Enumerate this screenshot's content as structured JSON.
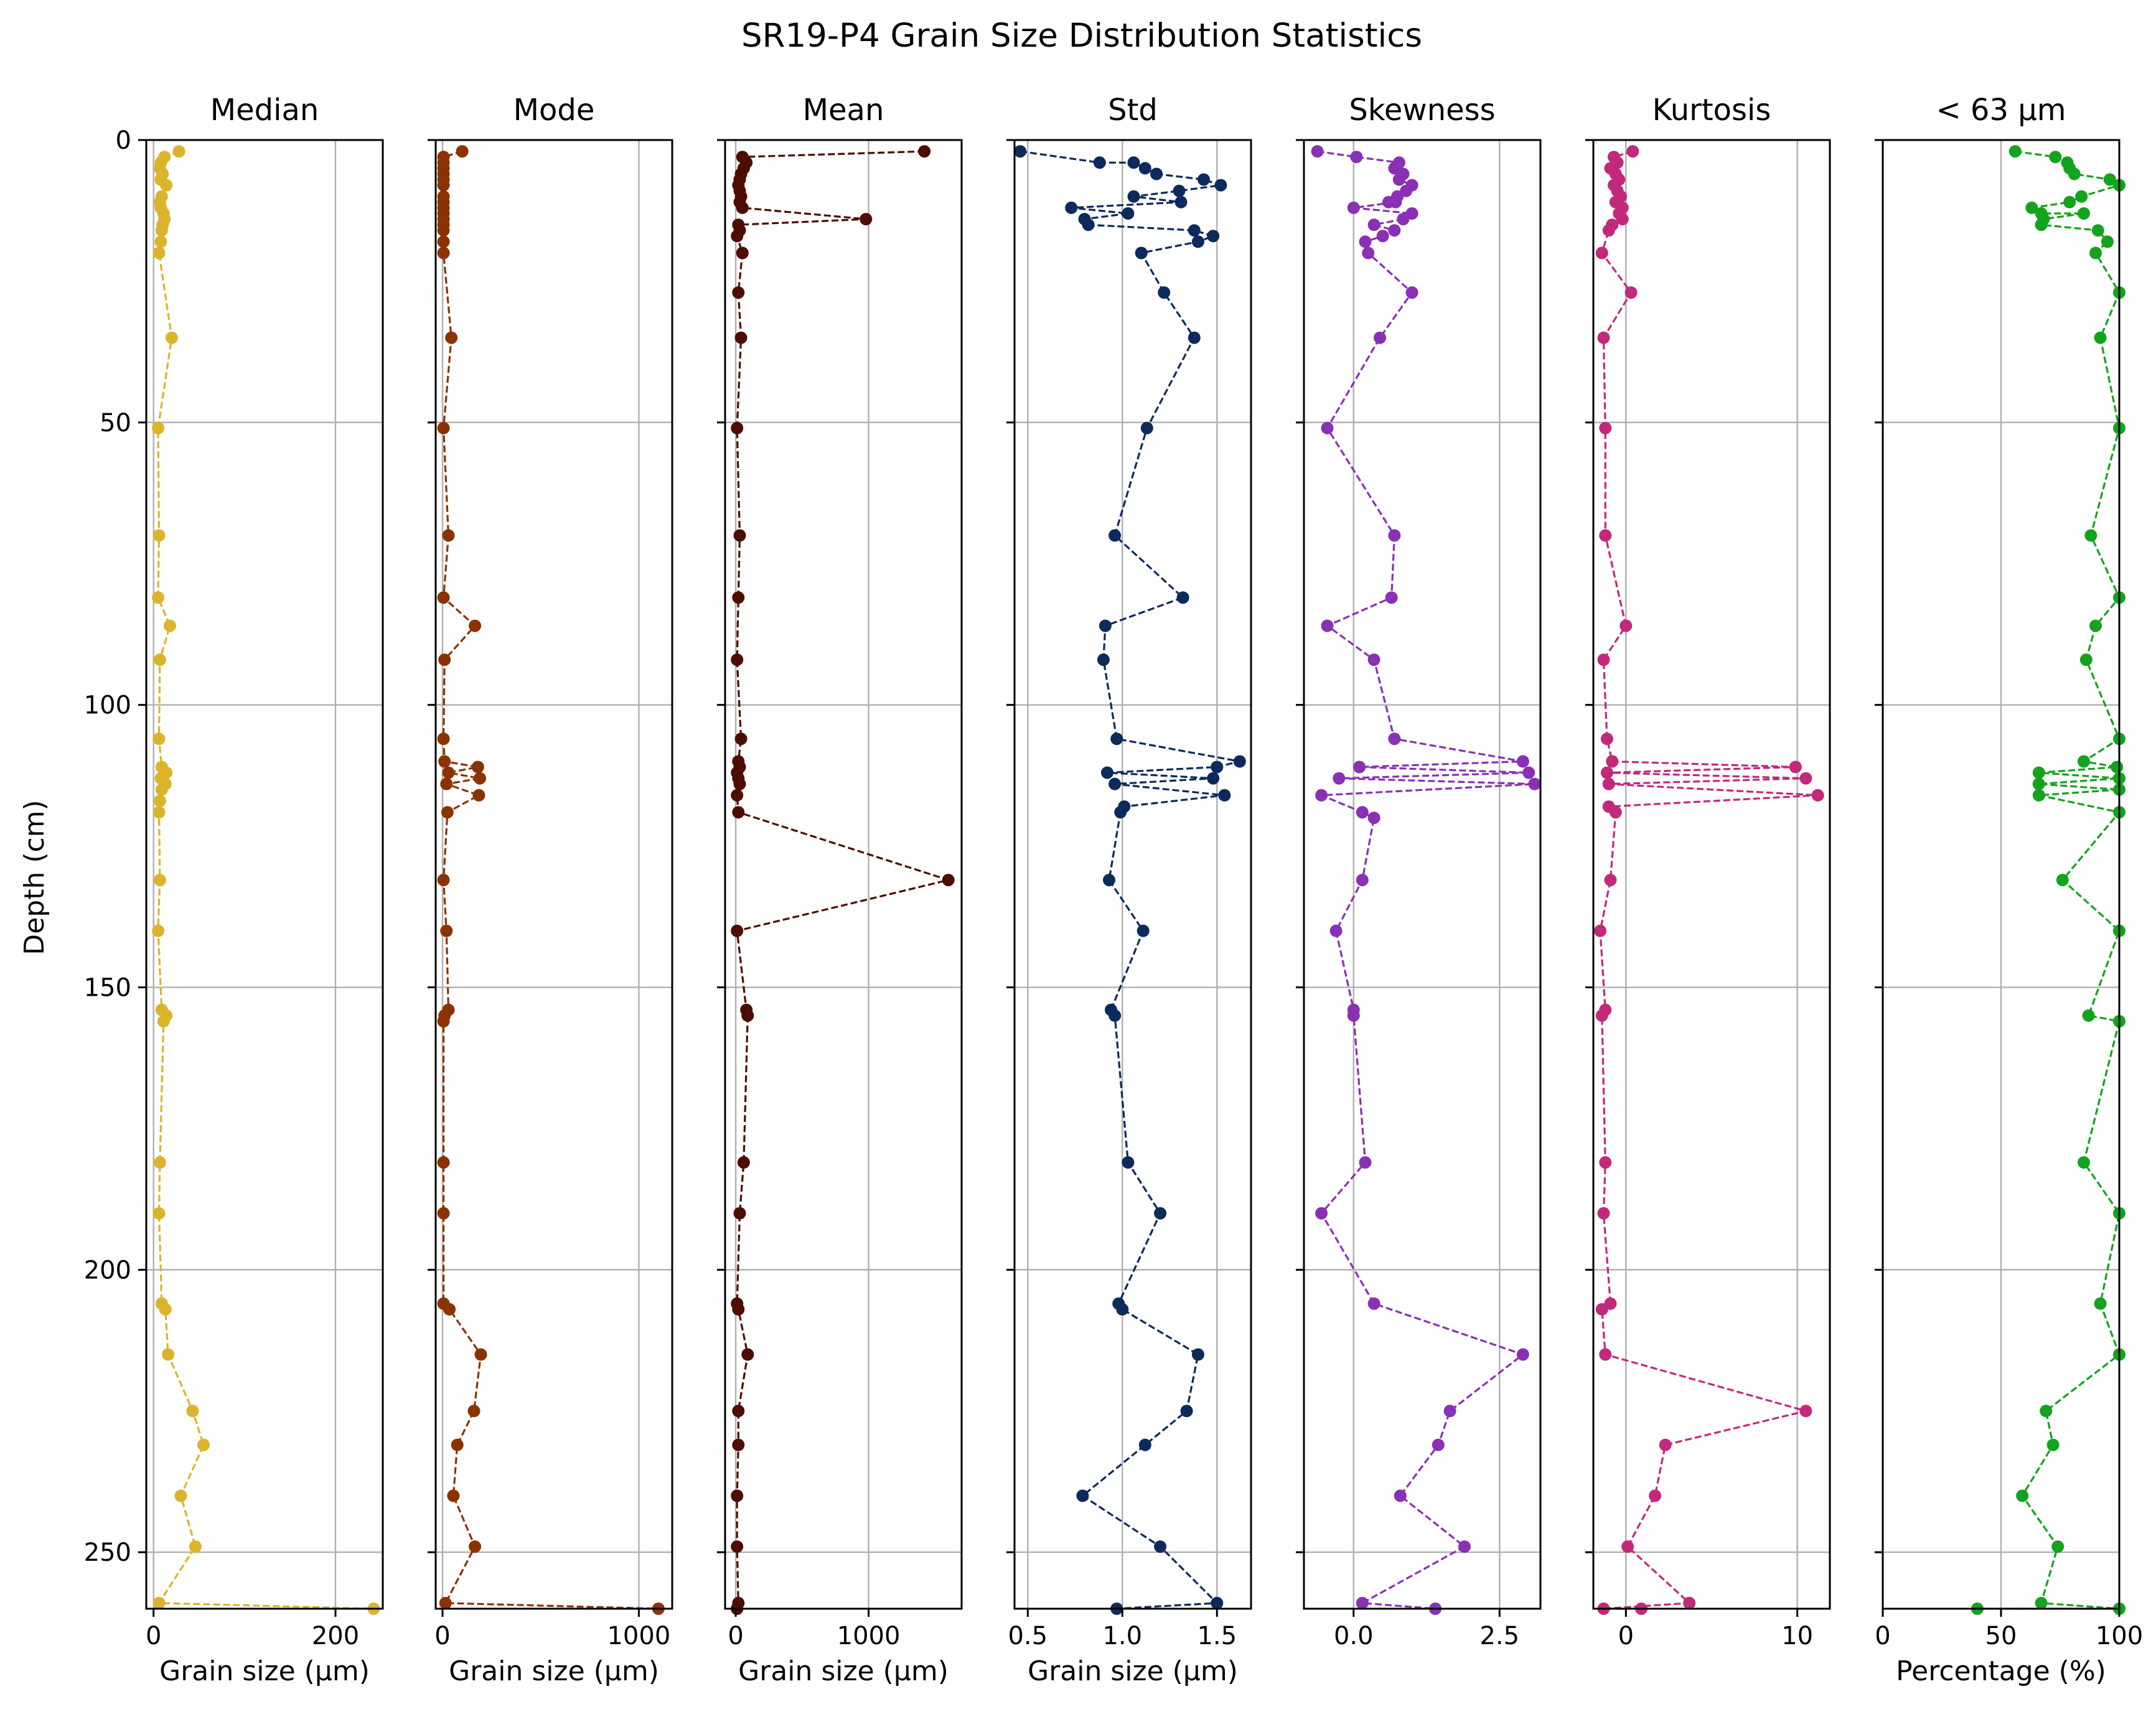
{
  "figure": {
    "title": "SR19-P4 Grain Size Distribution Statistics",
    "ylabel": "Depth (cm)"
  },
  "chart_data": [
    {
      "type": "line",
      "title": "Median",
      "xlabel": "Grain size (μm)",
      "color": "#dbb42c",
      "xlim": [
        -8,
        252
      ],
      "xticks": [
        0,
        200
      ],
      "ylim": [
        260,
        0
      ],
      "yticks": [
        0,
        50,
        100,
        150,
        200,
        250
      ],
      "x": [
        28,
        12,
        8,
        7,
        10,
        8,
        14,
        9,
        7,
        8,
        11,
        12,
        10,
        9,
        8,
        6,
        20,
        5,
        6,
        5,
        18,
        7,
        6,
        9,
        14,
        8,
        13,
        9,
        7,
        6,
        7,
        5,
        9,
        14,
        11,
        7,
        6,
        9,
        13,
        16,
        43,
        55,
        30,
        46,
        6,
        242
      ],
      "y": [
        2,
        3,
        4,
        5,
        6,
        7,
        8,
        10,
        11,
        12,
        13,
        14,
        15,
        16,
        18,
        20,
        35,
        51,
        70,
        81,
        86,
        92,
        106,
        111,
        112,
        113,
        114,
        115,
        117,
        119,
        131,
        140,
        154,
        155,
        156,
        181,
        190,
        206,
        207,
        215,
        225,
        231,
        240,
        249,
        259,
        260
      ]
    },
    {
      "type": "line",
      "title": "Mode",
      "xlabel": "Grain size (μm)",
      "color": "#8b3300",
      "xlim": [
        -35,
        1170
      ],
      "xticks": [
        0,
        1000
      ],
      "ylim": [
        260,
        0
      ],
      "yticks": [
        0,
        50,
        100,
        150,
        200,
        250
      ],
      "x": [
        100,
        5,
        5,
        5,
        5,
        5,
        5,
        5,
        5,
        5,
        5,
        5,
        5,
        5,
        5,
        5,
        45,
        5,
        30,
        5,
        165,
        10,
        5,
        10,
        180,
        30,
        190,
        20,
        185,
        25,
        5,
        20,
        30,
        10,
        5,
        5,
        5,
        5,
        35,
        195,
        160,
        75,
        55,
        165,
        15,
        1100
      ],
      "y": [
        2,
        3,
        4,
        5,
        6,
        7,
        8,
        10,
        11,
        12,
        13,
        14,
        15,
        16,
        18,
        20,
        35,
        51,
        70,
        81,
        86,
        92,
        106,
        110,
        111,
        112,
        113,
        114,
        116,
        119,
        131,
        140,
        154,
        155,
        156,
        181,
        190,
        206,
        207,
        215,
        225,
        231,
        240,
        249,
        259,
        260
      ]
    },
    {
      "type": "line",
      "title": "Mean",
      "xlabel": "Grain size (μm)",
      "color": "#4d0d00",
      "xlim": [
        -80,
        1700
      ],
      "xticks": [
        0,
        1000
      ],
      "ylim": [
        260,
        0
      ],
      "yticks": [
        0,
        50,
        100,
        150,
        200,
        250
      ],
      "x": [
        1420,
        50,
        80,
        60,
        40,
        30,
        20,
        30,
        40,
        30,
        50,
        980,
        20,
        30,
        10,
        50,
        20,
        40,
        10,
        30,
        20,
        10,
        40,
        20,
        30,
        10,
        20,
        30,
        10,
        20,
        1600,
        10,
        80,
        90,
        60,
        30,
        10,
        20,
        90,
        20,
        20,
        10,
        10,
        20,
        10,
        10
      ],
      "y": [
        2,
        3,
        4,
        5,
        6,
        7,
        8,
        9,
        10,
        11,
        12,
        14,
        15,
        16,
        17,
        20,
        27,
        35,
        51,
        70,
        81,
        92,
        106,
        110,
        111,
        112,
        113,
        114,
        116,
        119,
        131,
        140,
        154,
        155,
        181,
        190,
        206,
        207,
        215,
        225,
        231,
        240,
        249,
        259,
        260,
        260
      ]
    },
    {
      "type": "line",
      "title": "Std",
      "xlabel": "Grain size (μm)",
      "color": "#0d2a5c",
      "xlim": [
        0.43,
        1.68
      ],
      "xticks": [
        0.5,
        1.0,
        1.5
      ],
      "ylim": [
        260,
        0
      ],
      "yticks": [
        0,
        50,
        100,
        150,
        200,
        250
      ],
      "x": [
        0.46,
        0.88,
        1.06,
        1.12,
        1.18,
        1.43,
        1.52,
        1.3,
        1.06,
        1.31,
        0.73,
        1.03,
        0.8,
        0.82,
        1.38,
        1.48,
        1.4,
        1.1,
        1.22,
        1.38,
        1.13,
        0.96,
        1.32,
        0.91,
        0.9,
        0.97,
        1.62,
        1.5,
        0.92,
        1.48,
        0.96,
        1.54,
        1.01,
        0.99,
        0.93,
        1.11,
        0.94,
        0.96,
        1.03,
        1.2,
        0.98,
        1.0,
        1.4,
        1.34,
        1.12,
        0.79,
        1.2,
        1.5,
        0.97
      ],
      "y": [
        2,
        4,
        4,
        5,
        6,
        7,
        8,
        9,
        10,
        11,
        12,
        13,
        14,
        15,
        16,
        17,
        18,
        20,
        27,
        35,
        51,
        70,
        81,
        86,
        92,
        106,
        110,
        111,
        112,
        113,
        114,
        116,
        118,
        119,
        131,
        140,
        154,
        155,
        181,
        190,
        206,
        207,
        215,
        225,
        231,
        240,
        249,
        259,
        260
      ]
    },
    {
      "type": "line",
      "title": "Skewness",
      "xlabel": "",
      "color": "#8a30b4",
      "xlim": [
        -0.85,
        3.2
      ],
      "xticks": [
        0.0,
        2.5
      ],
      "ylim": [
        260,
        0
      ],
      "yticks": [
        0,
        50,
        100,
        150,
        200,
        250
      ],
      "x": [
        -0.62,
        0.05,
        0.78,
        0.7,
        0.85,
        0.78,
        1.0,
        0.9,
        0.75,
        0.6,
        0.72,
        0.0,
        1.0,
        0.85,
        0.35,
        0.7,
        0.5,
        0.2,
        0.25,
        1.0,
        0.45,
        -0.45,
        0.7,
        0.65,
        -0.45,
        0.35,
        0.7,
        2.9,
        0.1,
        3.0,
        -0.25,
        3.1,
        -0.55,
        0.15,
        0.35,
        0.15,
        -0.3,
        0.0,
        0.0,
        0.2,
        -0.55,
        0.35,
        2.9,
        1.65,
        1.45,
        0.8,
        1.9,
        0.15,
        1.4
      ],
      "y": [
        2,
        3,
        4,
        5,
        6,
        7,
        8,
        9,
        10,
        11,
        11,
        12,
        13,
        14,
        15,
        16,
        17,
        18,
        20,
        27,
        35,
        51,
        70,
        81,
        86,
        92,
        106,
        110,
        111,
        112,
        113,
        114,
        116,
        119,
        120,
        131,
        140,
        154,
        155,
        181,
        190,
        206,
        215,
        225,
        231,
        240,
        249,
        259,
        260
      ]
    },
    {
      "type": "line",
      "title": "Kurtosis",
      "xlabel": "",
      "color": "#c2297a",
      "xlim": [
        -1.9,
        11.9
      ],
      "xticks": [
        0,
        10
      ],
      "ylim": [
        260,
        0
      ],
      "yticks": [
        0,
        50,
        100,
        150,
        200,
        250
      ],
      "x": [
        0.4,
        -0.7,
        -0.5,
        -0.9,
        -0.6,
        -0.4,
        -0.7,
        -0.5,
        -0.3,
        -0.6,
        -0.2,
        -0.4,
        -0.2,
        -0.8,
        -1.0,
        -1.4,
        0.3,
        -1.3,
        -1.2,
        -1.2,
        0.0,
        -1.3,
        -1.1,
        -0.8,
        9.9,
        -1.1,
        10.5,
        -1.0,
        11.2,
        -1.0,
        -0.6,
        -0.9,
        -1.5,
        -1.2,
        -1.4,
        -1.2,
        -1.3,
        -0.9,
        -1.4,
        -1.2,
        10.5,
        2.3,
        1.7,
        0.1,
        3.7,
        -1.3,
        0.9
      ],
      "y": [
        2,
        3,
        4,
        5,
        6,
        7,
        8,
        9,
        10,
        11,
        12,
        13,
        14,
        15,
        16,
        20,
        27,
        35,
        51,
        70,
        86,
        92,
        106,
        110,
        111,
        112,
        113,
        114,
        116,
        118,
        119,
        131,
        140,
        154,
        155,
        181,
        190,
        206,
        207,
        215,
        225,
        231,
        240,
        249,
        259,
        260,
        260
      ]
    },
    {
      "type": "line",
      "title": "< 63 μm",
      "xlabel": "Percentage (%)",
      "color": "#13a31d",
      "xlim": [
        0,
        100
      ],
      "xticks": [
        0,
        50,
        100
      ],
      "ylim": [
        260,
        0
      ],
      "yticks": [
        0,
        50,
        100,
        150,
        200,
        250
      ],
      "x": [
        56,
        73,
        78,
        79,
        81,
        96,
        100,
        84,
        79,
        63,
        67,
        85,
        68,
        67,
        91,
        95,
        90,
        100,
        92,
        100,
        88,
        100,
        90,
        86,
        100,
        85,
        99,
        66,
        100,
        66,
        100,
        66,
        100,
        76,
        100,
        87,
        100,
        85,
        100,
        92,
        100,
        69,
        72,
        59,
        74,
        67,
        100,
        40
      ],
      "y": [
        2,
        3,
        4,
        5,
        6,
        7,
        8,
        10,
        11,
        12,
        13,
        13,
        14,
        15,
        16,
        18,
        20,
        27,
        35,
        51,
        70,
        81,
        86,
        92,
        106,
        110,
        111,
        112,
        113,
        114,
        115,
        116,
        119,
        131,
        140,
        155,
        156,
        181,
        190,
        206,
        215,
        225,
        231,
        240,
        249,
        259,
        260,
        260
      ]
    }
  ]
}
